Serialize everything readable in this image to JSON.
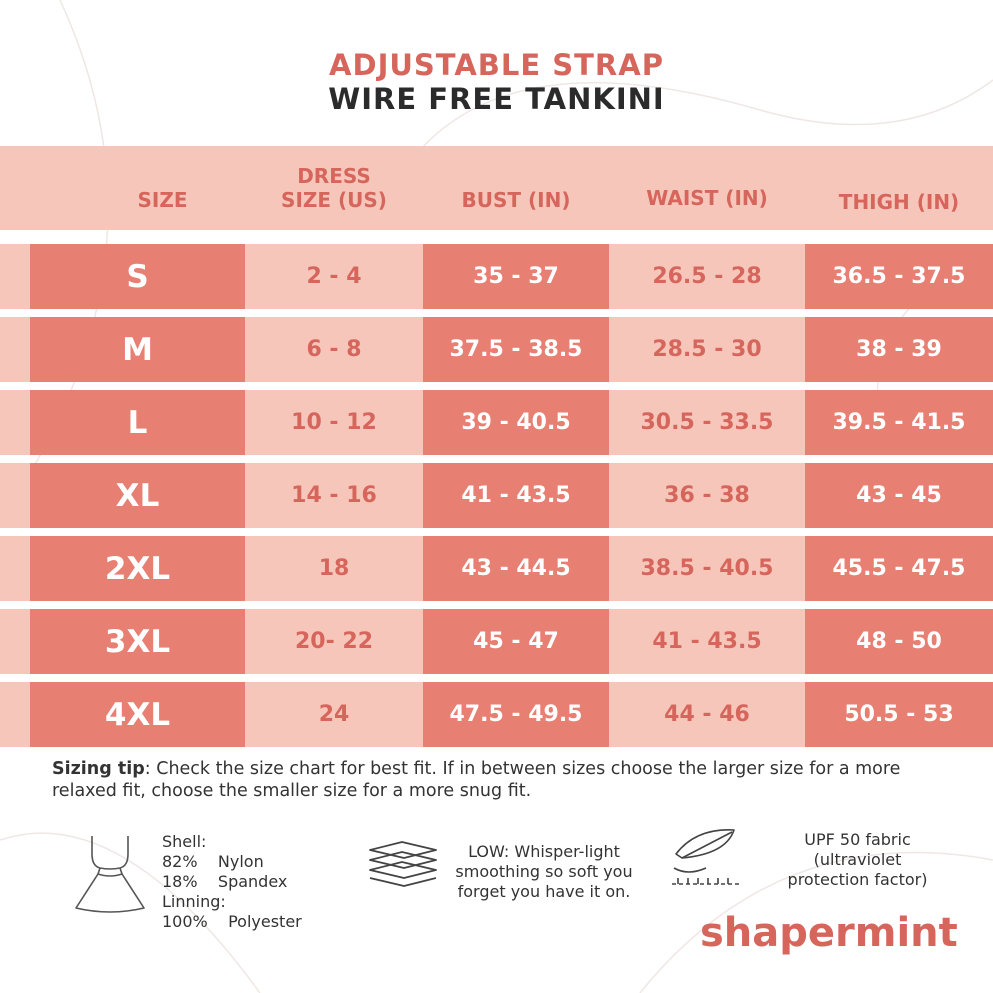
{
  "title": {
    "line1": "ADJUSTABLE STRAP",
    "line2": "WIRE FREE TANKINI"
  },
  "colors": {
    "accent": "#d6655c",
    "cell_dark": "#e77f72",
    "cell_light": "#f6c6bb",
    "text_dark": "#2b2b2b"
  },
  "table": {
    "headers": {
      "size": "SIZE",
      "dress_line1": "DRESS",
      "dress_line2": "SIZE (US)",
      "bust": "BUST (IN)",
      "waist": "WAIST (IN)",
      "thigh": "THIGH (IN)"
    },
    "rows": [
      {
        "size": "S",
        "dress": "2 - 4",
        "bust": "35 - 37",
        "waist": "26.5 - 28",
        "thigh": "36.5 - 37.5"
      },
      {
        "size": "M",
        "dress": "6 - 8",
        "bust": "37.5 - 38.5",
        "waist": "28.5 - 30",
        "thigh": "38 - 39"
      },
      {
        "size": "L",
        "dress": "10 - 12",
        "bust": "39 - 40.5",
        "waist": "30.5 - 33.5",
        "thigh": "39.5 - 41.5"
      },
      {
        "size": "XL",
        "dress": "14 - 16",
        "bust": "41 - 43.5",
        "waist": "36 - 38",
        "thigh": "43 - 45"
      },
      {
        "size": "2XL",
        "dress": "18",
        "bust": "43 - 44.5",
        "waist": "38.5 - 40.5",
        "thigh": "45.5 - 47.5"
      },
      {
        "size": "3XL",
        "dress": "20- 22",
        "bust": "45 - 47",
        "waist": "41 - 43.5",
        "thigh": "48 - 50"
      },
      {
        "size": "4XL",
        "dress": "24",
        "bust": "47.5 - 49.5",
        "waist": "44 - 46",
        "thigh": "50.5 - 53"
      }
    ]
  },
  "sizing_tip": {
    "label": "Sizing tip",
    "text": ": Check the size chart for best fit. If in between sizes choose the larger size for a more relaxed fit, choose the smaller size for a more snug fit."
  },
  "features": {
    "fabric": {
      "icon": "tankini-icon",
      "line1": "Shell:",
      "line2": "82%    Nylon",
      "line3": "18%    Spandex",
      "line4": "Linning:",
      "line5": "100%    Polyester"
    },
    "compression": {
      "icon": "layers-icon",
      "line1": "LOW: Whisper-light",
      "line2": "smoothing so soft you",
      "line3": "forget you have it on."
    },
    "upf": {
      "icon": "feather-icon",
      "line1": "UPF 50 fabric",
      "line2": "(ultraviolet",
      "line3": "protection factor)"
    }
  },
  "brand": {
    "logo_text": "shapermint"
  }
}
